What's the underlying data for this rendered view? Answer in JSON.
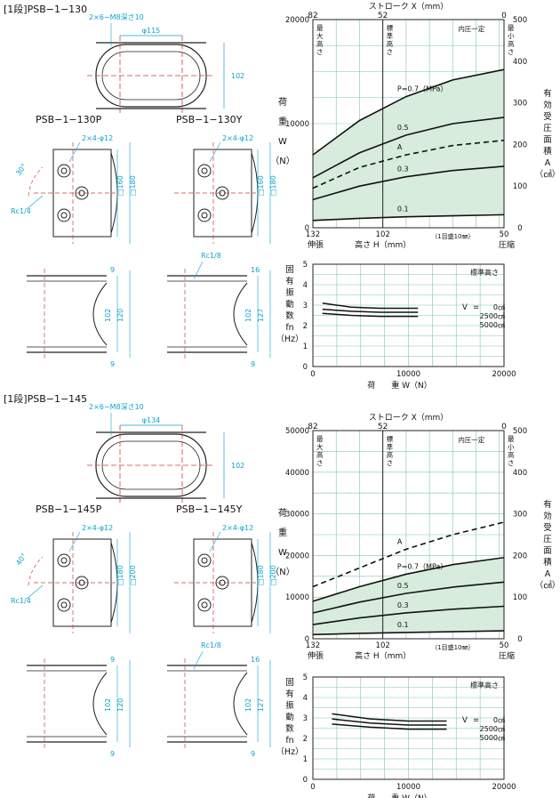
{
  "sections": [
    {
      "title": "[1段]PSB−1−130",
      "top": {
        "hole_label": "2×6−M8深さ10",
        "dia_label": "φ115",
        "height_label": "102"
      },
      "variants": [
        {
          "name": "PSB−1−130P",
          "hole_label": "2×4-φ12",
          "dim_a": "□160",
          "dim_b": "□180",
          "angle": "30°",
          "port": "Rc1/4"
        },
        {
          "name": "PSB−1−130Y",
          "hole_label": "2×4-φ12",
          "dim_a": "□160",
          "dim_b": "□180"
        }
      ],
      "side_views": {
        "a": [
          "9",
          "102",
          "120",
          "9"
        ],
        "b": [
          "16",
          "102",
          "127",
          "9"
        ],
        "port_b": "Rc1/8"
      },
      "load_chart": {
        "stroke_title": "ストローク X（mm）",
        "stroke_ticks": [
          "82",
          "52",
          "0"
        ],
        "y_left_ticks": [
          "0",
          "10000",
          "20000"
        ],
        "y_right_ticks": [
          "0",
          "100",
          "200",
          "300",
          "400",
          "500"
        ],
        "x_ticks": [
          "132",
          "102",
          "50"
        ],
        "x_sub": [
          "伸張",
          "高さ H（mm）",
          "（1目盛10㎜）",
          "圧縮"
        ],
        "y_left_label": [
          "荷",
          "重",
          "W",
          "（N）"
        ],
        "y_right_label": [
          "有",
          "効",
          "受",
          "圧",
          "面",
          "積",
          "A",
          "（㎠）"
        ],
        "col_labels": [
          "最大高さ",
          "標準高さ",
          "内圧一定",
          "最小高さ"
        ],
        "curve_labels": [
          "P=0.7（MPa）",
          "0.5",
          "A",
          "0.3",
          "0.1"
        ]
      },
      "freq_chart": {
        "title": "標準高さ",
        "y_ticks": [
          "0",
          "1",
          "2",
          "3",
          "4",
          "5"
        ],
        "x_ticks": [
          "0",
          "10000",
          "20000"
        ],
        "y_label": [
          "固",
          "有",
          "振",
          "動",
          "数",
          "fn",
          "（Hz）"
        ],
        "x_label": "荷　　重 W（N）",
        "legend": [
          "V",
          "=",
          "0㎤",
          "2500㎤",
          "5000㎤"
        ]
      }
    },
    {
      "title": "[1段]PSB−1−145",
      "top": {
        "hole_label": "2×6−M8深さ10",
        "dia_label": "φ134",
        "height_label": "102"
      },
      "variants": [
        {
          "name": "PSB−1−145P",
          "hole_label": "2×4-φ12",
          "dim_a": "□180",
          "dim_b": "□200",
          "angle": "40°",
          "port": "Rc1/4"
        },
        {
          "name": "PSB−1−145Y",
          "hole_label": "2×4-φ12",
          "dim_a": "□180",
          "dim_b": "□200"
        }
      ],
      "side_views": {
        "a": [
          "9",
          "102",
          "120",
          "9"
        ],
        "b": [
          "16",
          "102",
          "127",
          "9"
        ],
        "port_b": "Rc1/8"
      },
      "load_chart": {
        "stroke_title": "ストローク X（mm）",
        "stroke_ticks": [
          "82",
          "52",
          "0"
        ],
        "y_left_ticks": [
          "0",
          "10000",
          "20000",
          "30000",
          "40000",
          "50000"
        ],
        "y_right_ticks": [
          "0",
          "100",
          "200",
          "300",
          "400",
          "500"
        ],
        "x_ticks": [
          "132",
          "102",
          "50"
        ],
        "x_sub": [
          "伸張",
          "高さ H（mm）",
          "（1目盛10㎜）",
          "圧縮"
        ],
        "y_left_label": [
          "荷",
          "重",
          "W",
          "（N）"
        ],
        "y_right_label": [
          "有",
          "効",
          "受",
          "圧",
          "面",
          "積",
          "A",
          "（㎠）"
        ],
        "col_labels": [
          "最大高さ",
          "標準高さ",
          "内圧一定",
          "最小高さ"
        ],
        "curve_labels": [
          "A",
          "P=0.7（MPa）",
          "0.5",
          "0.3",
          "0.1"
        ]
      },
      "freq_chart": {
        "title": "標準高さ",
        "y_ticks": [
          "0",
          "1",
          "2",
          "3",
          "4",
          "5"
        ],
        "x_ticks": [
          "0",
          "10000",
          "20000"
        ],
        "y_label": [
          "固",
          "有",
          "振",
          "動",
          "数",
          "fn",
          "（Hz）"
        ],
        "x_label": "荷　　重 W（N）",
        "legend": [
          "V",
          "=",
          "0㎤",
          "2500㎤",
          "5000㎤"
        ]
      }
    }
  ],
  "chart_data": [
    {
      "type": "line",
      "name_ref": "PSB-1-130 load",
      "x": [
        132,
        50
      ],
      "ylim": [
        0,
        20000
      ],
      "y2lim": [
        0,
        500
      ],
      "series": [
        {
          "name": "P=0.7（MPa）",
          "x": [
            132,
            112,
            92,
            72,
            50
          ],
          "values": [
            7000,
            10300,
            12600,
            14200,
            15200
          ]
        },
        {
          "name": "0.5",
          "x": [
            132,
            112,
            92,
            72,
            50
          ],
          "values": [
            4800,
            7200,
            8900,
            10000,
            10600
          ]
        },
        {
          "name": "A",
          "x": [
            132,
            112,
            92,
            72,
            50
          ],
          "values": [
            3800,
            5800,
            7000,
            7900,
            8400
          ],
          "dashed": true
        },
        {
          "name": "0.3",
          "x": [
            132,
            112,
            92,
            72,
            50
          ],
          "values": [
            2700,
            4000,
            4900,
            5500,
            5900
          ]
        },
        {
          "name": "0.1",
          "x": [
            132,
            112,
            92,
            72,
            50
          ],
          "values": [
            700,
            900,
            1050,
            1150,
            1250
          ]
        }
      ]
    },
    {
      "type": "line",
      "name_ref": "PSB-1-130 freq",
      "xlim": [
        0,
        20000
      ],
      "ylim": [
        0,
        5
      ],
      "series": [
        {
          "name": "0㎤",
          "x": [
            1000,
            4000,
            7000,
            11000
          ],
          "values": [
            3.1,
            2.9,
            2.85,
            2.85
          ]
        },
        {
          "name": "2500㎤",
          "x": [
            1000,
            4000,
            7000,
            11000
          ],
          "values": [
            2.8,
            2.7,
            2.65,
            2.65
          ]
        },
        {
          "name": "5000㎤",
          "x": [
            1000,
            4000,
            7000,
            11000
          ],
          "values": [
            2.6,
            2.5,
            2.45,
            2.45
          ]
        }
      ]
    },
    {
      "type": "line",
      "name_ref": "PSB-1-145 load",
      "x": [
        132,
        50
      ],
      "ylim": [
        0,
        50000
      ],
      "y2lim": [
        0,
        500
      ],
      "series": [
        {
          "name": "A",
          "x": [
            132,
            112,
            92,
            72,
            50
          ],
          "values": [
            12500,
            17000,
            21500,
            25000,
            28000
          ],
          "dashed": true
        },
        {
          "name": "P=0.7（MPa）",
          "x": [
            132,
            112,
            92,
            72,
            50
          ],
          "values": [
            9000,
            12500,
            15500,
            17800,
            19500
          ]
        },
        {
          "name": "0.5",
          "x": [
            132,
            112,
            92,
            72,
            50
          ],
          "values": [
            6200,
            8800,
            10900,
            12400,
            13600
          ]
        },
        {
          "name": "0.3",
          "x": [
            132,
            112,
            92,
            72,
            50
          ],
          "values": [
            3400,
            5000,
            6200,
            7100,
            7800
          ]
        },
        {
          "name": "0.1",
          "x": [
            132,
            112,
            92,
            72,
            50
          ],
          "values": [
            1000,
            1300,
            1500,
            1700,
            1900
          ]
        }
      ]
    },
    {
      "type": "line",
      "name_ref": "PSB-1-145 freq",
      "xlim": [
        0,
        20000
      ],
      "ylim": [
        0,
        5
      ],
      "series": [
        {
          "name": "0㎤",
          "x": [
            2000,
            6000,
            10000,
            14000
          ],
          "values": [
            3.2,
            2.95,
            2.85,
            2.85
          ]
        },
        {
          "name": "2500㎤",
          "x": [
            2000,
            6000,
            10000,
            14000
          ],
          "values": [
            2.95,
            2.75,
            2.65,
            2.65
          ]
        },
        {
          "name": "5000㎤",
          "x": [
            2000,
            6000,
            10000,
            14000
          ],
          "values": [
            2.7,
            2.55,
            2.45,
            2.45
          ]
        }
      ]
    }
  ]
}
